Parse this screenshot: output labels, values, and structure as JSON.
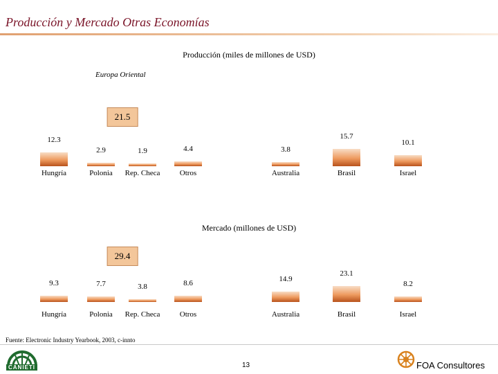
{
  "slide": {
    "title": "Producción y Mercado Otras Economías",
    "source": "Fuente: Electronic Industry Yearbook, 2003, c-innto",
    "page_number": "13",
    "footer_brand": "FOA Consultores",
    "footer_logo": "CANIETI"
  },
  "chart_data": [
    {
      "type": "bar",
      "title": "Producción (miles de millones de USD)",
      "group_label": "Europa Oriental",
      "group_total": "21.5",
      "categories": [
        "Hungría",
        "Polonia",
        "Rep. Checa",
        "Otros",
        "Australia",
        "Brasil",
        "Israel"
      ],
      "values": [
        12.3,
        2.9,
        1.9,
        4.4,
        3.8,
        15.7,
        10.1
      ],
      "value_labels": [
        "12.3",
        "2.9",
        "1.9",
        "4.4",
        "3.8",
        "15.7",
        "10.1"
      ]
    },
    {
      "type": "bar",
      "title": "Mercado (millones de USD)",
      "group_total": "29.4",
      "categories": [
        "Hungría",
        "Polonia",
        "Rep. Checa",
        "Otros",
        "Australia",
        "Brasil",
        "Israel"
      ],
      "values": [
        9.3,
        7.7,
        3.8,
        8.6,
        14.9,
        23.1,
        8.2
      ],
      "value_labels": [
        "9.3",
        "7.7",
        "3.8",
        "8.6",
        "14.9",
        "23.1",
        "8.2"
      ]
    }
  ],
  "colors": {
    "title": "#7a1428",
    "bar_top": "#f8ddc6",
    "bar_mid": "#ee9a5e",
    "bar_bottom": "#b8521c",
    "box_fill": "#f3c69a"
  }
}
